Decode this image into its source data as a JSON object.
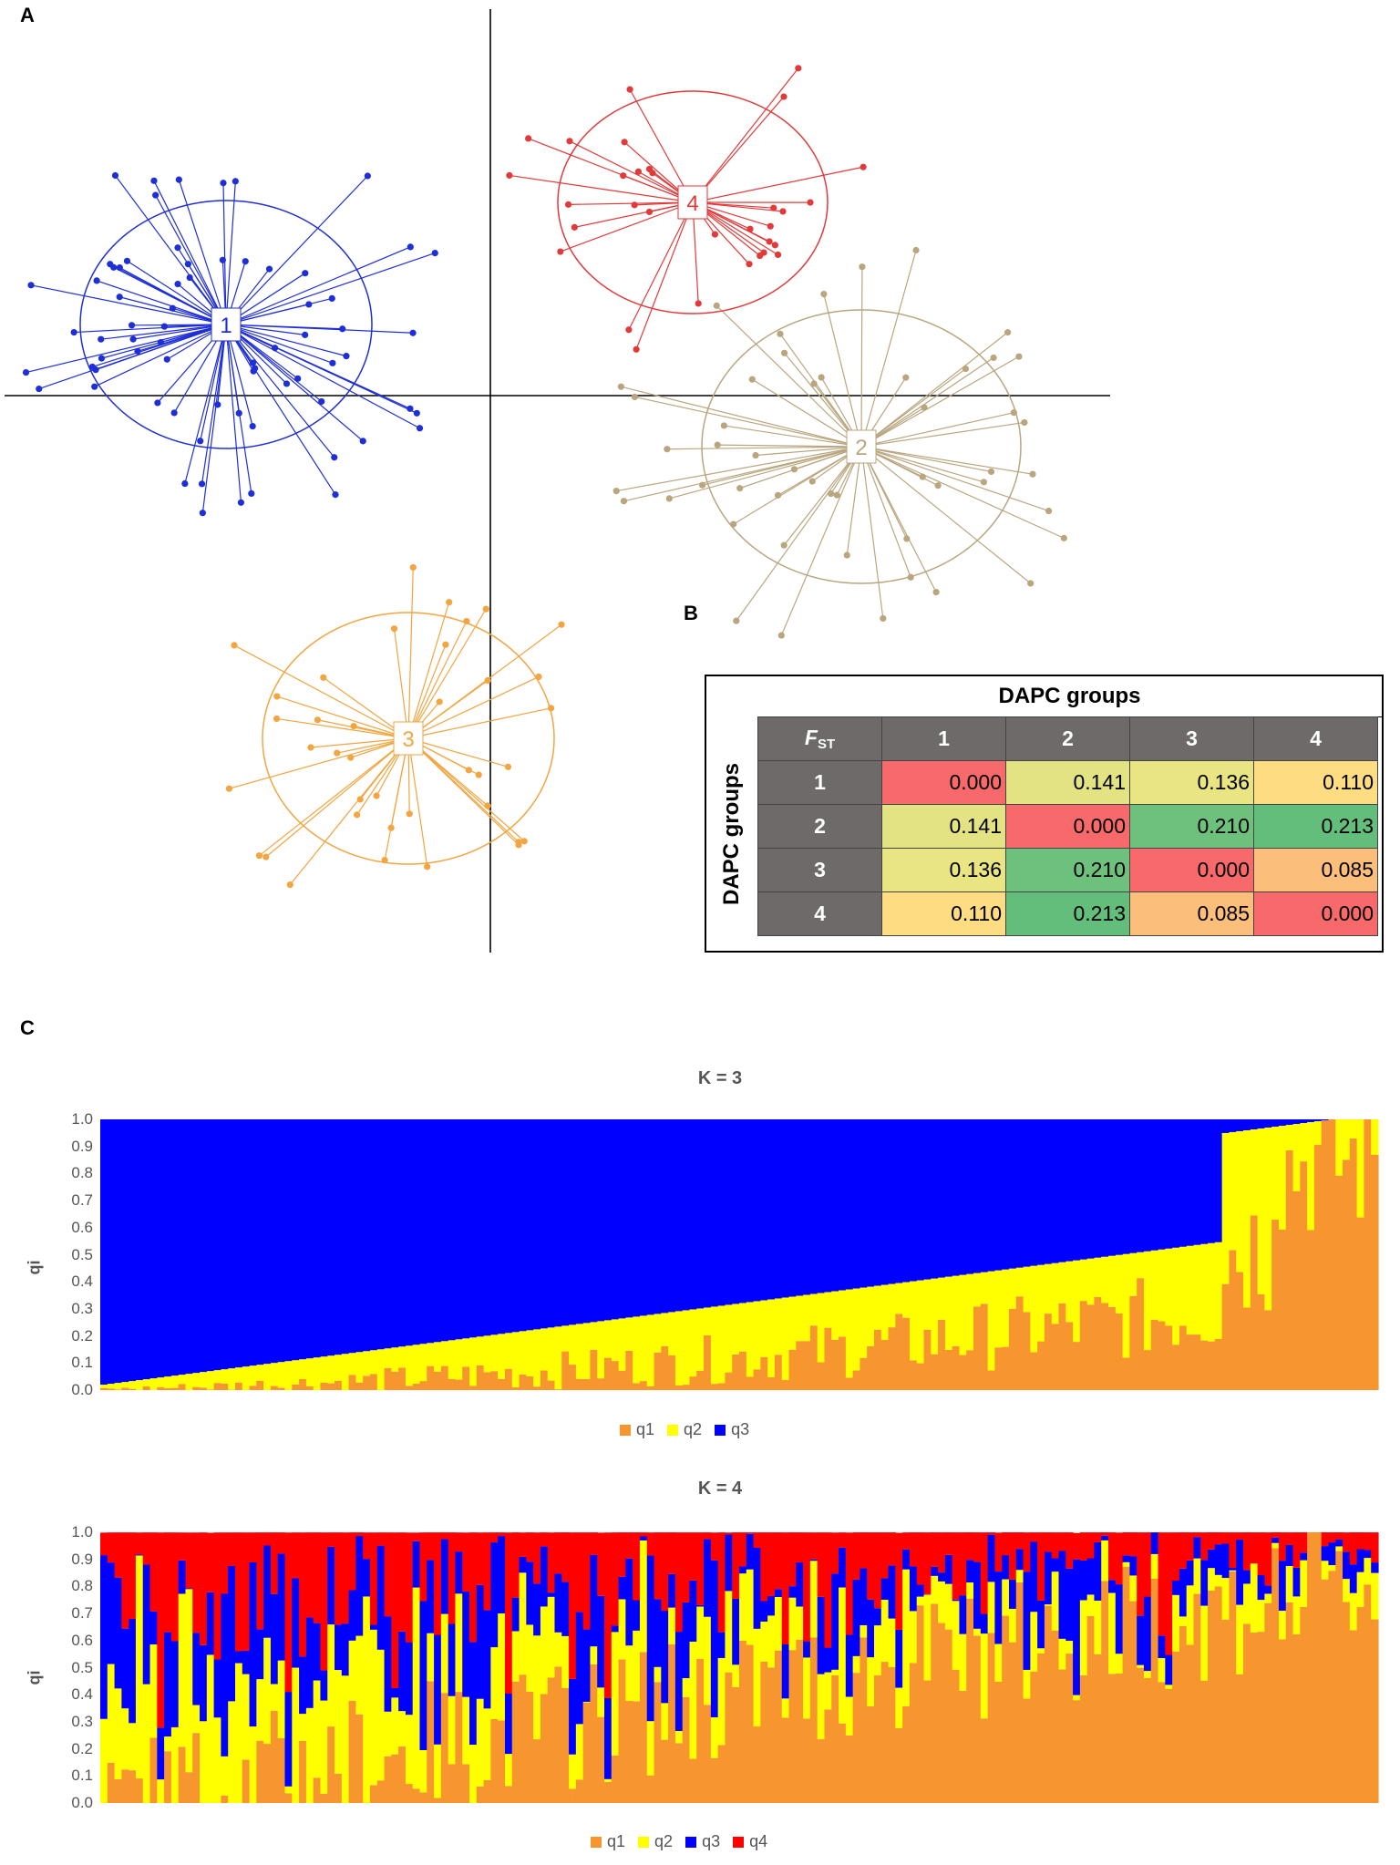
{
  "panels": {
    "a": "A",
    "b": "B",
    "c": "C"
  },
  "colors": {
    "group1": "#1f2fd8",
    "group2": "#b9a67f",
    "group3": "#f2a540",
    "group4": "#e23a3a",
    "q1": "#f7952f",
    "q2": "#ffff00",
    "q3": "#0000ff",
    "q4": "#ff0000"
  },
  "scatter": {
    "groups": [
      {
        "label": "1",
        "color_key": "group1"
      },
      {
        "label": "2",
        "color_key": "group2"
      },
      {
        "label": "3",
        "color_key": "group3"
      },
      {
        "label": "4",
        "color_key": "group4"
      }
    ]
  },
  "fst_table": {
    "col_title": "DAPC groups",
    "row_title": "DAPC groups",
    "corner": "F",
    "corner_sub": "ST",
    "headers": [
      "1",
      "2",
      "3",
      "4"
    ],
    "rows": [
      {
        "label": "1",
        "values": [
          "0.000",
          "0.141",
          "0.136",
          "0.110"
        ]
      },
      {
        "label": "2",
        "values": [
          "0.141",
          "0.000",
          "0.210",
          "0.213"
        ]
      },
      {
        "label": "3",
        "values": [
          "0.136",
          "0.210",
          "0.000",
          "0.085"
        ]
      },
      {
        "label": "4",
        "values": [
          "0.110",
          "0.213",
          "0.085",
          "0.000"
        ]
      }
    ],
    "cell_colors": {
      "0.000": "#f8696b",
      "0.141": "#e3e383",
      "0.136": "#e8e582",
      "0.110": "#fedc81",
      "0.210": "#6dc17d",
      "0.213": "#63be7b",
      "0.085": "#fcbf7b"
    }
  },
  "chart_data": [
    {
      "type": "bar",
      "stacked": true,
      "title": "K = 3",
      "ylabel": "qi",
      "ylim": [
        0,
        1
      ],
      "yticks": [
        "0.0",
        "0.1",
        "0.2",
        "0.3",
        "0.4",
        "0.5",
        "0.6",
        "0.7",
        "0.8",
        "0.9",
        "1.0"
      ],
      "n_individuals": 180,
      "series_names": [
        "q1",
        "q2",
        "q3"
      ],
      "legend": [
        "q1",
        "q2",
        "q3"
      ],
      "legend_position": "bottom"
    },
    {
      "type": "bar",
      "stacked": true,
      "title": "K = 4",
      "ylabel": "qi",
      "ylim": [
        0,
        1
      ],
      "yticks": [
        "0.0",
        "0.1",
        "0.2",
        "0.3",
        "0.4",
        "0.5",
        "0.6",
        "0.7",
        "0.8",
        "0.9",
        "1.0"
      ],
      "n_individuals": 180,
      "series_names": [
        "q1",
        "q2",
        "q3",
        "q4"
      ],
      "legend": [
        "q1",
        "q2",
        "q3",
        "q4"
      ],
      "legend_position": "bottom"
    }
  ]
}
